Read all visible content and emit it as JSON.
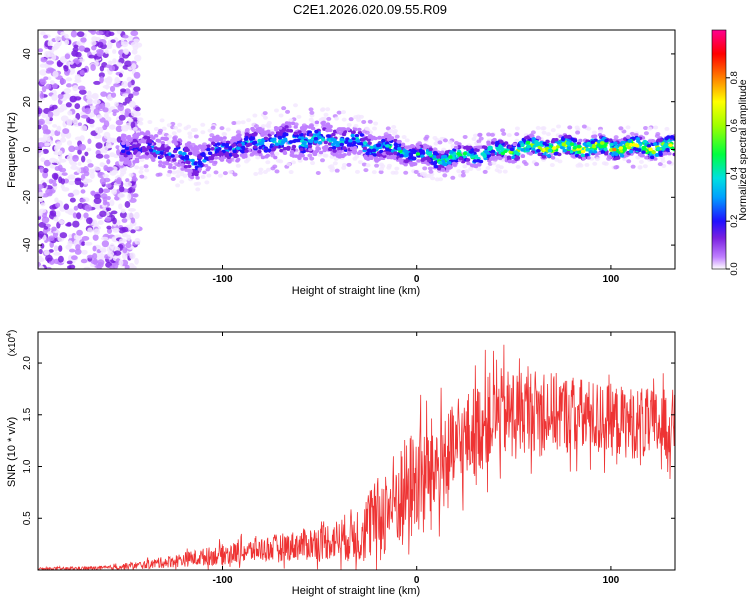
{
  "title": "C2E1.2026.020.09.55.R09",
  "colors": {
    "snr_line": "#ee3333",
    "axis": "#000000",
    "colormap": [
      "#ffffff",
      "#c080ff",
      "#7a20e0",
      "#3a10f0",
      "#0030ff",
      "#00d0ff",
      "#00ff60",
      "#80ff00",
      "#ffff00",
      "#ff8000",
      "#ff1010",
      "#ff00a0"
    ]
  },
  "chart_data": [
    {
      "type": "heatmap",
      "name": "spectrogram",
      "xlabel": "Height of straight line (km)",
      "ylabel": "Frequency (Hz)",
      "xlim": [
        -195,
        133
      ],
      "ylim": [
        -50,
        50
      ],
      "xticks": [
        -100,
        0,
        100
      ],
      "yticks": [
        -40,
        -20,
        0,
        20,
        40
      ],
      "ytick_labels": [
        "-40",
        "-20",
        "0",
        "20",
        "40"
      ],
      "xtick_labels": [
        "-100",
        "0",
        "100"
      ],
      "colorbar": {
        "label": "Normalized spectral amplitude",
        "range": [
          0,
          1
        ],
        "ticks": [
          0.0,
          0.2,
          0.4,
          0.6,
          0.8
        ],
        "tick_labels": [
          "0.0",
          "0.2",
          "0.4",
          "0.6",
          "0.8"
        ]
      },
      "signal_track": {
        "x": [
          -152,
          -130,
          -115,
          -100,
          -80,
          -60,
          -40,
          -20,
          0,
          10,
          20,
          40,
          60,
          80,
          100,
          120,
          133
        ],
        "center_hz": [
          1,
          0,
          -5,
          0,
          3,
          4,
          4,
          1,
          -2,
          -4,
          -3,
          -1,
          1,
          1,
          1,
          1,
          1
        ],
        "halfwidth_hz": [
          6,
          6,
          7,
          5,
          6,
          7,
          6,
          5,
          4,
          4,
          4,
          4,
          4,
          4,
          4,
          4,
          4
        ],
        "peak_amplitude": [
          0.35,
          0.35,
          0.4,
          0.4,
          0.45,
          0.45,
          0.45,
          0.5,
          0.5,
          0.55,
          0.6,
          0.65,
          0.75,
          0.8,
          0.8,
          0.85,
          0.8
        ]
      }
    },
    {
      "type": "line",
      "name": "snr",
      "xlabel": "Height of straight line (km)",
      "ylabel": "SNR (10 * v/v)",
      "y_multiplier": "(x10",
      "y_multiplier_exp": "4",
      "y_multiplier_close": ")",
      "xlim": [
        -195,
        133
      ],
      "ylim": [
        0,
        2.3
      ],
      "xticks": [
        -100,
        0,
        100
      ],
      "xtick_labels": [
        "-100",
        "0",
        "100"
      ],
      "yticks": [
        0.5,
        1.0,
        1.5,
        2.0
      ],
      "ytick_labels": [
        "0.5",
        "1.0",
        "1.5",
        "2.0"
      ],
      "envelope": {
        "x": [
          -195,
          -160,
          -140,
          -120,
          -100,
          -80,
          -60,
          -40,
          -30,
          -20,
          -10,
          0,
          10,
          20,
          30,
          40,
          60,
          80,
          100,
          120,
          133
        ],
        "mean": [
          0.01,
          0.02,
          0.05,
          0.1,
          0.15,
          0.2,
          0.24,
          0.3,
          0.35,
          0.5,
          0.7,
          0.85,
          1.0,
          1.15,
          1.35,
          1.5,
          1.55,
          1.5,
          1.45,
          1.4,
          1.4
        ],
        "spread": [
          0.01,
          0.02,
          0.04,
          0.07,
          0.1,
          0.12,
          0.15,
          0.2,
          0.3,
          0.4,
          0.5,
          0.55,
          0.5,
          0.45,
          0.45,
          0.45,
          0.4,
          0.38,
          0.35,
          0.35,
          0.35
        ]
      }
    }
  ]
}
